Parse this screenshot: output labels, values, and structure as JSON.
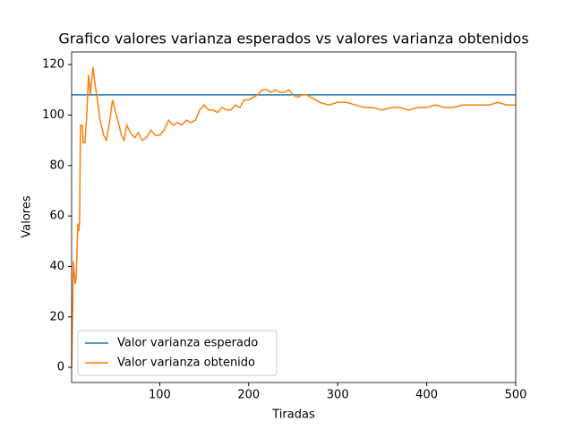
{
  "chart_data": {
    "type": "line",
    "title": "Grafico valores varianza esperados vs valores varianza obtenidos",
    "xlabel": "Tiradas",
    "ylabel": "Valores",
    "xlim": [
      1,
      500
    ],
    "ylim": [
      -6,
      125
    ],
    "xticks": [
      100,
      200,
      300,
      400,
      500
    ],
    "yticks": [
      0,
      20,
      40,
      60,
      80,
      100,
      120
    ],
    "legend": "lower left",
    "series": [
      {
        "name": "Valor varianza esperado",
        "color": "#1f77b4",
        "x": [
          1,
          500
        ],
        "values": [
          108,
          108
        ]
      },
      {
        "name": "Valor varianza obtenido",
        "color": "#ff7f0e",
        "x": [
          1,
          3,
          5,
          6,
          8,
          9,
          10,
          11,
          13,
          14,
          16,
          18,
          20,
          22,
          25,
          27,
          30,
          33,
          37,
          40,
          44,
          47,
          52,
          57,
          60,
          63,
          67,
          72,
          76,
          80,
          85,
          90,
          95,
          100,
          105,
          110,
          115,
          120,
          125,
          130,
          135,
          140,
          145,
          150,
          155,
          160,
          165,
          170,
          175,
          180,
          185,
          190,
          195,
          200,
          205,
          210,
          215,
          220,
          225,
          230,
          235,
          240,
          245,
          250,
          255,
          260,
          265,
          270,
          280,
          290,
          300,
          310,
          320,
          330,
          340,
          350,
          360,
          370,
          380,
          390,
          400,
          410,
          420,
          430,
          440,
          450,
          460,
          470,
          480,
          490,
          500
        ],
        "values": [
          0,
          42,
          33,
          35,
          57,
          54,
          58,
          96,
          96,
          89,
          89,
          100,
          116,
          108,
          119,
          113,
          106,
          98,
          92,
          90,
          98,
          106,
          99,
          92,
          90,
          96,
          93,
          91,
          93,
          90,
          91,
          94,
          92,
          92,
          94,
          98,
          96,
          97,
          96,
          98,
          97,
          98,
          102,
          104,
          102,
          102,
          101,
          103,
          102,
          102,
          104,
          103,
          106,
          106,
          107,
          108,
          110,
          110,
          109,
          110,
          109,
          109,
          110,
          108,
          107,
          108,
          108,
          107,
          105,
          104,
          105,
          105,
          104,
          103,
          103,
          102,
          103,
          103,
          102,
          103,
          103,
          104,
          103,
          103,
          104,
          104,
          104,
          104,
          105,
          104,
          104
        ]
      }
    ]
  }
}
